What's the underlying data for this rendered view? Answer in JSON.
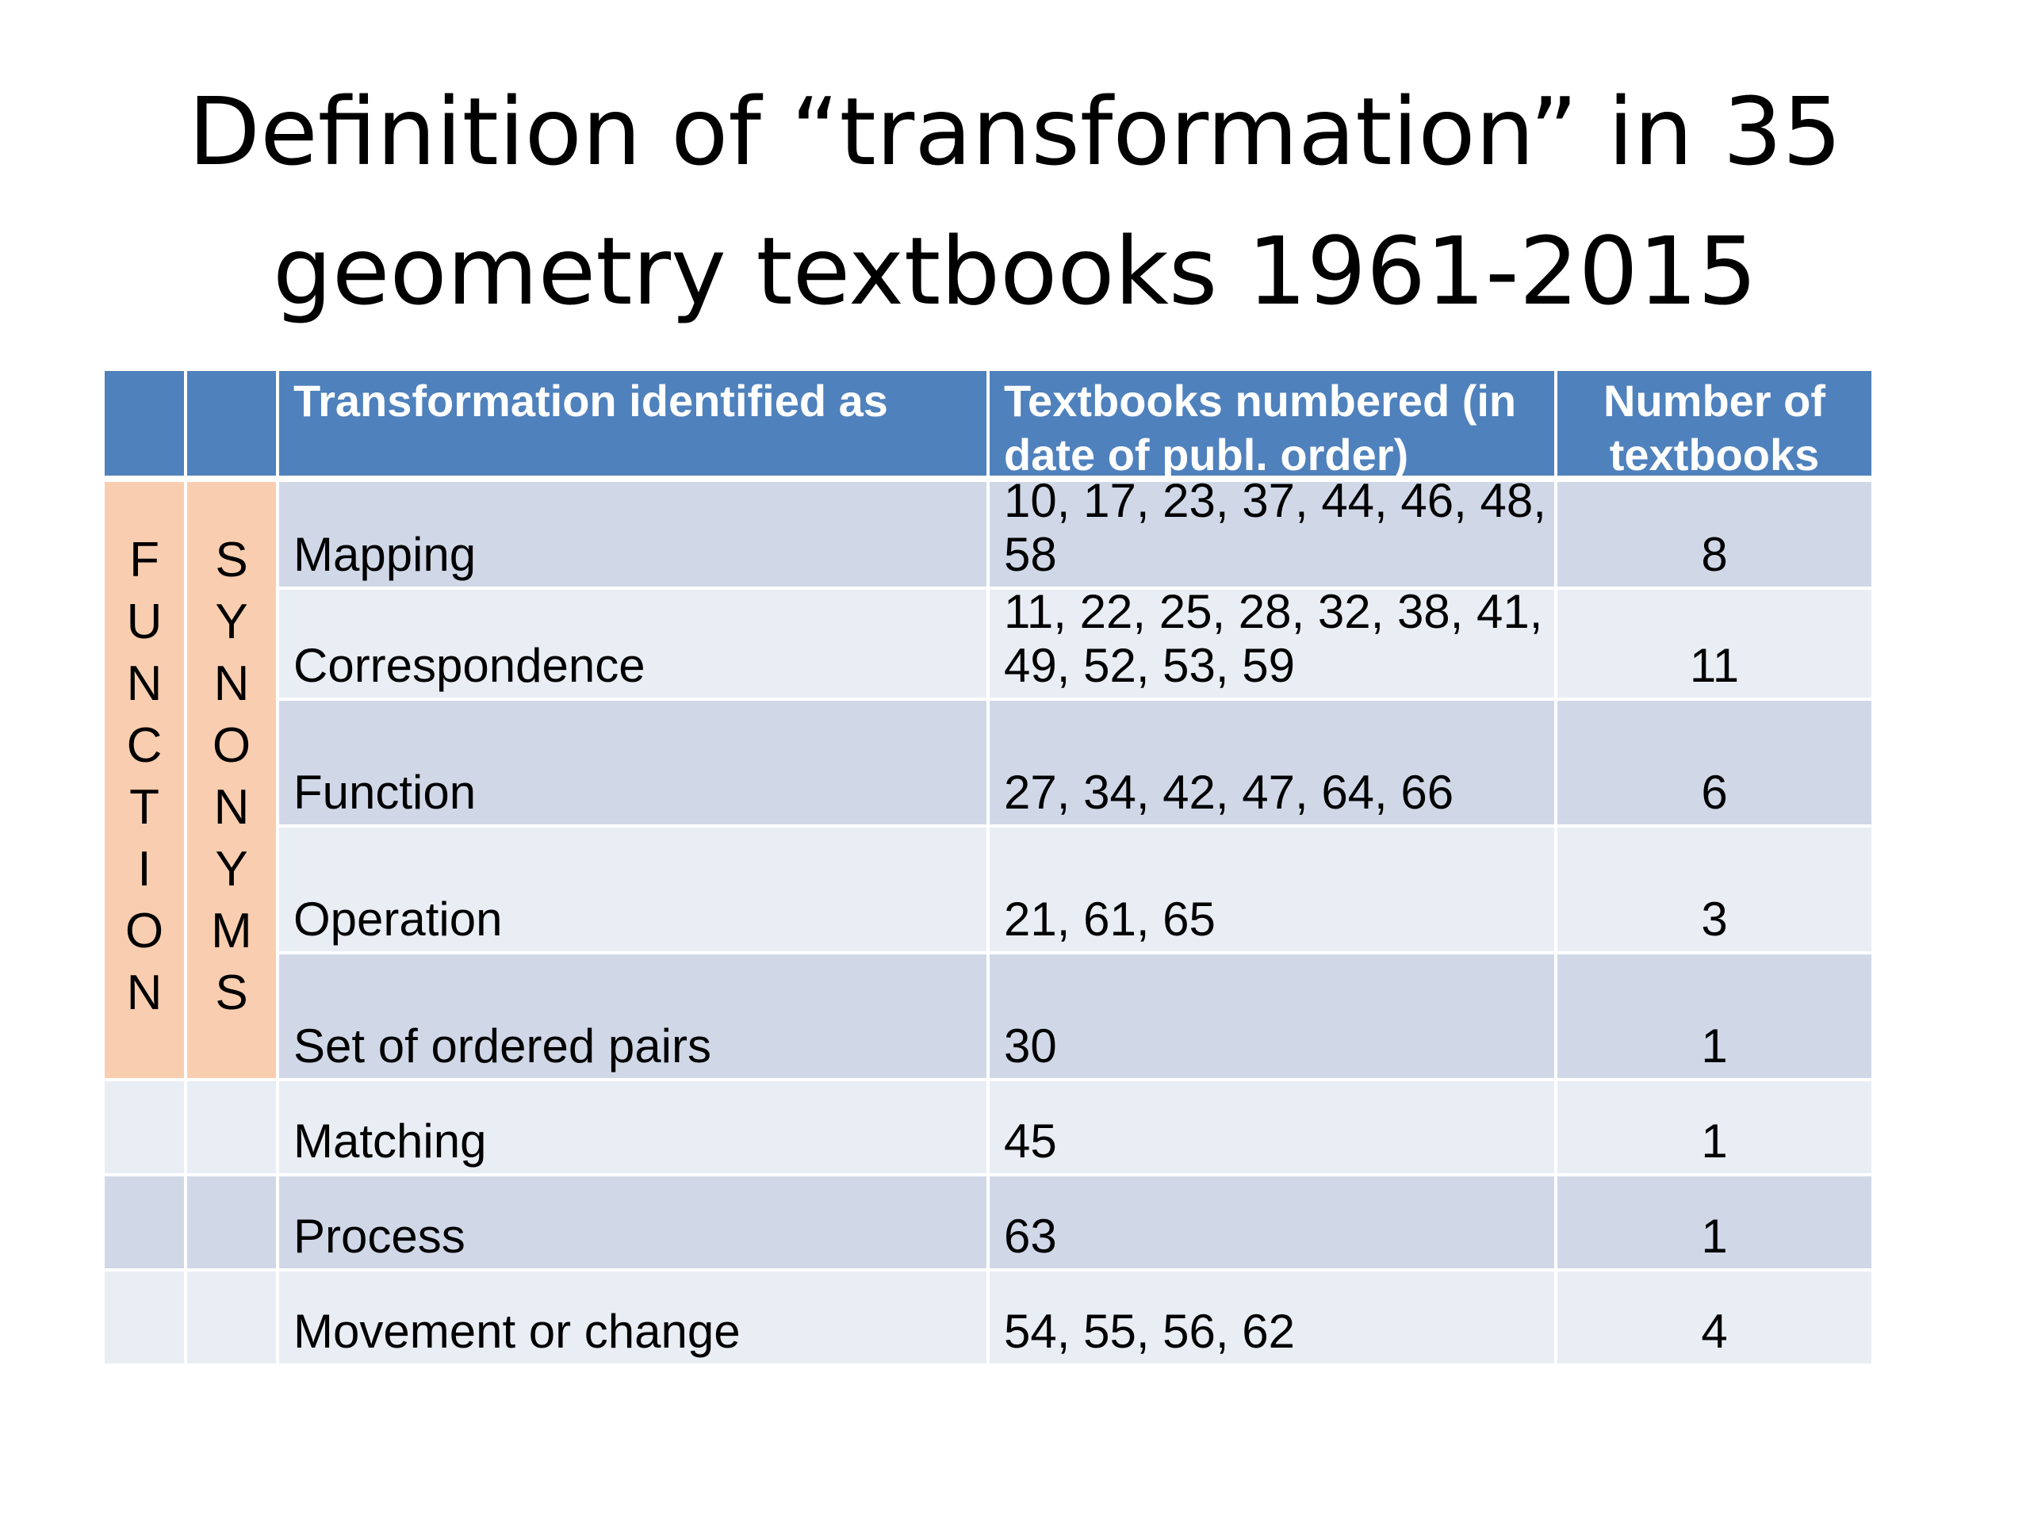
{
  "title": {
    "line1": "Definition of “transformation” in 35",
    "line2": "geometry textbooks 1961-2015"
  },
  "table": {
    "headers": {
      "identified_as": "Transformation identified as",
      "textbooks_line1": "Textbooks numbered (in",
      "textbooks_line2": "date of publ. order)",
      "number_line1": "Number of",
      "number_line2": "textbooks"
    },
    "group_function": [
      "F",
      "U",
      "N",
      "C",
      "T",
      "I",
      "O",
      "N"
    ],
    "group_synonyms": [
      "S",
      "Y",
      "N",
      "O",
      "N",
      "Y",
      "M",
      "S"
    ],
    "rows": [
      {
        "term": "Mapping",
        "textbooks_line1": "10, 17, 23, 37, 44, 46, 48,",
        "textbooks_line2": "58",
        "count": "8"
      },
      {
        "term": "Correspondence",
        "textbooks_line1": "11, 22, 25, 28, 32, 38, 41,",
        "textbooks_line2": "49, 52, 53, 59",
        "count": "11"
      },
      {
        "term": "Function",
        "textbooks_line1": "",
        "textbooks_line2": "27, 34, 42, 47, 64, 66",
        "count": "6"
      },
      {
        "term": "Operation",
        "textbooks_line1": "",
        "textbooks_line2": "21, 61, 65",
        "count": "3"
      },
      {
        "term": "Set of ordered pairs",
        "textbooks_line1": "",
        "textbooks_line2": "30",
        "count": "1"
      },
      {
        "term": "Matching",
        "textbooks_line1": "",
        "textbooks_line2": "45",
        "count": "1"
      },
      {
        "term": "Process",
        "textbooks_line1": "",
        "textbooks_line2": "63",
        "count": "1"
      },
      {
        "term": "Movement or change",
        "textbooks_line1": "",
        "textbooks_line2": "54, 55, 56, 62",
        "count": "4"
      }
    ]
  }
}
